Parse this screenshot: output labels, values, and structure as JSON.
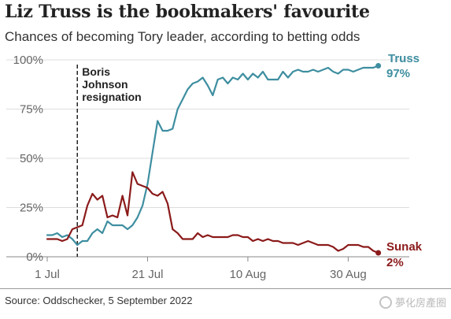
{
  "header": {
    "title": "Liz Truss is the bookmakers' favourite",
    "subtitle": "Chances of becoming Tory leader, according to betting odds"
  },
  "footer": {
    "source": "Source: Oddschecker, 5 September 2022",
    "watermark": "夢化房產圈"
  },
  "chart_data": {
    "type": "line",
    "title": "Liz Truss is the bookmakers' favourite",
    "subtitle": "Chances of becoming Tory leader, according to betting odds",
    "xlabel": "",
    "ylabel": "",
    "ylim": [
      0,
      100
    ],
    "xlim": [
      "2022-07-01",
      "2022-09-06"
    ],
    "y_ticks": [
      0,
      25,
      50,
      75,
      100
    ],
    "y_tick_labels": [
      "0%",
      "25%",
      "50%",
      "75%",
      "100%"
    ],
    "x_ticks": [
      "2022-07-01",
      "2022-07-21",
      "2022-08-10",
      "2022-08-30"
    ],
    "x_tick_labels": [
      "1 Jul",
      "21 Jul",
      "10 Aug",
      "30 Aug"
    ],
    "grid": "horizontal",
    "annotation": {
      "date": "2022-07-07",
      "lines": [
        "Boris",
        "Johnson",
        "resignation"
      ]
    },
    "series": [
      {
        "name": "Truss",
        "end_label": "97%",
        "color": "#3e8ea0",
        "points": [
          [
            "2022-07-01",
            11
          ],
          [
            "2022-07-02",
            11
          ],
          [
            "2022-07-03",
            12
          ],
          [
            "2022-07-04",
            10
          ],
          [
            "2022-07-05",
            11
          ],
          [
            "2022-07-06",
            9
          ],
          [
            "2022-07-07",
            6
          ],
          [
            "2022-07-08",
            8
          ],
          [
            "2022-07-09",
            8
          ],
          [
            "2022-07-10",
            12
          ],
          [
            "2022-07-11",
            14
          ],
          [
            "2022-07-12",
            12
          ],
          [
            "2022-07-13",
            18
          ],
          [
            "2022-07-14",
            16
          ],
          [
            "2022-07-15",
            16
          ],
          [
            "2022-07-16",
            16
          ],
          [
            "2022-07-17",
            14
          ],
          [
            "2022-07-18",
            16
          ],
          [
            "2022-07-19",
            20
          ],
          [
            "2022-07-20",
            26
          ],
          [
            "2022-07-21",
            37
          ],
          [
            "2022-07-22",
            53
          ],
          [
            "2022-07-23",
            69
          ],
          [
            "2022-07-24",
            64
          ],
          [
            "2022-07-25",
            64
          ],
          [
            "2022-07-26",
            65
          ],
          [
            "2022-07-27",
            75
          ],
          [
            "2022-07-28",
            80
          ],
          [
            "2022-07-29",
            85
          ],
          [
            "2022-07-30",
            88
          ],
          [
            "2022-07-31",
            89
          ],
          [
            "2022-08-01",
            91
          ],
          [
            "2022-08-02",
            87
          ],
          [
            "2022-08-03",
            82
          ],
          [
            "2022-08-04",
            90
          ],
          [
            "2022-08-05",
            91
          ],
          [
            "2022-08-06",
            88
          ],
          [
            "2022-08-07",
            91
          ],
          [
            "2022-08-08",
            90
          ],
          [
            "2022-08-09",
            93
          ],
          [
            "2022-08-10",
            90
          ],
          [
            "2022-08-11",
            93
          ],
          [
            "2022-08-12",
            91
          ],
          [
            "2022-08-13",
            94
          ],
          [
            "2022-08-14",
            90
          ],
          [
            "2022-08-15",
            90
          ],
          [
            "2022-08-16",
            90
          ],
          [
            "2022-08-17",
            94
          ],
          [
            "2022-08-18",
            91
          ],
          [
            "2022-08-19",
            94
          ],
          [
            "2022-08-20",
            95
          ],
          [
            "2022-08-21",
            94
          ],
          [
            "2022-08-22",
            94
          ],
          [
            "2022-08-23",
            95
          ],
          [
            "2022-08-24",
            94
          ],
          [
            "2022-08-25",
            95
          ],
          [
            "2022-08-26",
            96
          ],
          [
            "2022-08-27",
            94
          ],
          [
            "2022-08-28",
            93
          ],
          [
            "2022-08-29",
            95
          ],
          [
            "2022-08-30",
            95
          ],
          [
            "2022-08-31",
            94
          ],
          [
            "2022-09-01",
            95
          ],
          [
            "2022-09-02",
            96
          ],
          [
            "2022-09-03",
            96
          ],
          [
            "2022-09-04",
            96
          ],
          [
            "2022-09-05",
            97
          ]
        ]
      },
      {
        "name": "Sunak",
        "end_label": "2%",
        "color": "#8b1a1a",
        "points": [
          [
            "2022-07-01",
            9
          ],
          [
            "2022-07-02",
            9
          ],
          [
            "2022-07-03",
            9
          ],
          [
            "2022-07-04",
            8
          ],
          [
            "2022-07-05",
            9
          ],
          [
            "2022-07-06",
            14
          ],
          [
            "2022-07-07",
            15
          ],
          [
            "2022-07-08",
            16
          ],
          [
            "2022-07-09",
            26
          ],
          [
            "2022-07-10",
            32
          ],
          [
            "2022-07-11",
            29
          ],
          [
            "2022-07-12",
            31
          ],
          [
            "2022-07-13",
            20
          ],
          [
            "2022-07-14",
            21
          ],
          [
            "2022-07-15",
            20
          ],
          [
            "2022-07-16",
            31
          ],
          [
            "2022-07-17",
            21
          ],
          [
            "2022-07-18",
            43
          ],
          [
            "2022-07-19",
            37
          ],
          [
            "2022-07-20",
            36
          ],
          [
            "2022-07-21",
            35
          ],
          [
            "2022-07-22",
            32
          ],
          [
            "2022-07-23",
            31
          ],
          [
            "2022-07-24",
            33
          ],
          [
            "2022-07-25",
            27
          ],
          [
            "2022-07-26",
            14
          ],
          [
            "2022-07-27",
            12
          ],
          [
            "2022-07-28",
            9
          ],
          [
            "2022-07-29",
            9
          ],
          [
            "2022-07-30",
            9
          ],
          [
            "2022-07-31",
            12
          ],
          [
            "2022-08-01",
            10
          ],
          [
            "2022-08-02",
            11
          ],
          [
            "2022-08-03",
            10
          ],
          [
            "2022-08-04",
            10
          ],
          [
            "2022-08-05",
            10
          ],
          [
            "2022-08-06",
            10
          ],
          [
            "2022-08-07",
            11
          ],
          [
            "2022-08-08",
            11
          ],
          [
            "2022-08-09",
            10
          ],
          [
            "2022-08-10",
            10
          ],
          [
            "2022-08-11",
            8
          ],
          [
            "2022-08-12",
            9
          ],
          [
            "2022-08-13",
            8
          ],
          [
            "2022-08-14",
            9
          ],
          [
            "2022-08-15",
            8
          ],
          [
            "2022-08-16",
            8
          ],
          [
            "2022-08-17",
            7
          ],
          [
            "2022-08-18",
            7
          ],
          [
            "2022-08-19",
            7
          ],
          [
            "2022-08-20",
            6
          ],
          [
            "2022-08-21",
            7
          ],
          [
            "2022-08-22",
            8
          ],
          [
            "2022-08-23",
            7
          ],
          [
            "2022-08-24",
            6
          ],
          [
            "2022-08-25",
            6
          ],
          [
            "2022-08-26",
            6
          ],
          [
            "2022-08-27",
            5
          ],
          [
            "2022-08-28",
            3
          ],
          [
            "2022-08-29",
            4
          ],
          [
            "2022-08-30",
            6
          ],
          [
            "2022-08-31",
            6
          ],
          [
            "2022-09-01",
            6
          ],
          [
            "2022-09-02",
            5
          ],
          [
            "2022-09-03",
            5
          ],
          [
            "2022-09-04",
            3
          ],
          [
            "2022-09-05",
            2
          ]
        ]
      }
    ]
  }
}
